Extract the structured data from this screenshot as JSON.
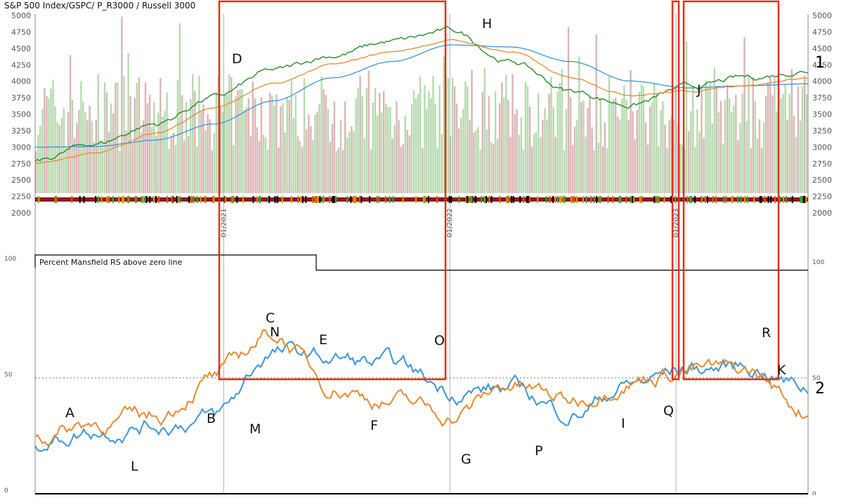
{
  "chart_data": [
    {
      "type": "line",
      "panel_id": "1",
      "title": "S&P 500 Index/GSPC/ P_R3000 / Russell 3000",
      "panel_number": "1",
      "x_tick_labels": [
        "01/2021",
        "01/2022",
        "01/2023"
      ],
      "ylim": [
        2000,
        5000
      ],
      "y_ticks": [
        2000,
        2250,
        2500,
        2750,
        3000,
        3250,
        3500,
        3750,
        4000,
        4250,
        4500,
        4750,
        5000
      ],
      "x": [
        "2020-03",
        "2020-06",
        "2020-09",
        "2021-01",
        "2021-04",
        "2021-07",
        "2021-10",
        "2022-01",
        "2022-04",
        "2022-07",
        "2022-10",
        "2023-01",
        "2023-04",
        "2023-08"
      ],
      "series": [
        {
          "values": [
            2800,
            3050,
            3350,
            3750,
            4150,
            4400,
            4600,
            4760,
            4300,
            3850,
            3650,
            3900,
            4050,
            4170
          ],
          "color": "#2a8a2a"
        },
        {
          "values": [
            3000,
            3010,
            3100,
            3350,
            3700,
            4050,
            4300,
            4550,
            4520,
            4300,
            4000,
            3900,
            3930,
            3960
          ],
          "color": "#3c95d8"
        },
        {
          "values": [
            2760,
            2900,
            3200,
            3600,
            3950,
            4250,
            4450,
            4620,
            4450,
            4050,
            3800,
            3850,
            3950,
            4050
          ],
          "color": "#e68a2e"
        }
      ],
      "volume": {
        "color_up": "#a8d4a0",
        "color_down": "#d4a8a8"
      },
      "annotations": [
        "D",
        "H",
        "J"
      ]
    },
    {
      "type": "line",
      "panel_id": "2",
      "title": "Percent Mansfield RS above zero line",
      "panel_number": "2",
      "ylim": [
        0,
        100
      ],
      "y_ticks": [
        0,
        50,
        100
      ],
      "reference_line": 50,
      "x": [
        "2020-03",
        "2020-06",
        "2020-09",
        "2021-01",
        "2021-04",
        "2021-07",
        "2021-10",
        "2022-01",
        "2022-04",
        "2022-07",
        "2022-10",
        "2023-01",
        "2023-04",
        "2023-08"
      ],
      "series": [
        {
          "values": [
            23,
            28,
            30,
            33,
            61,
            58,
            55,
            45,
            45,
            35,
            47,
            54,
            55,
            46
          ],
          "color": "#3c95d8"
        },
        {
          "values": [
            24,
            31,
            33,
            50,
            69,
            47,
            40,
            34,
            47,
            40,
            50,
            54,
            52,
            36
          ],
          "color": "#e68a2e"
        }
      ],
      "step_line": {
        "values": [
          100,
          100,
          100,
          98,
          98,
          98,
          98,
          98,
          98,
          98,
          98,
          98,
          98,
          98
        ]
      },
      "annotations": [
        "A",
        "B",
        "C",
        "N",
        "E",
        "O",
        "F",
        "G",
        "P",
        "I",
        "Q",
        "R",
        "K",
        "M",
        "L"
      ]
    }
  ]
}
